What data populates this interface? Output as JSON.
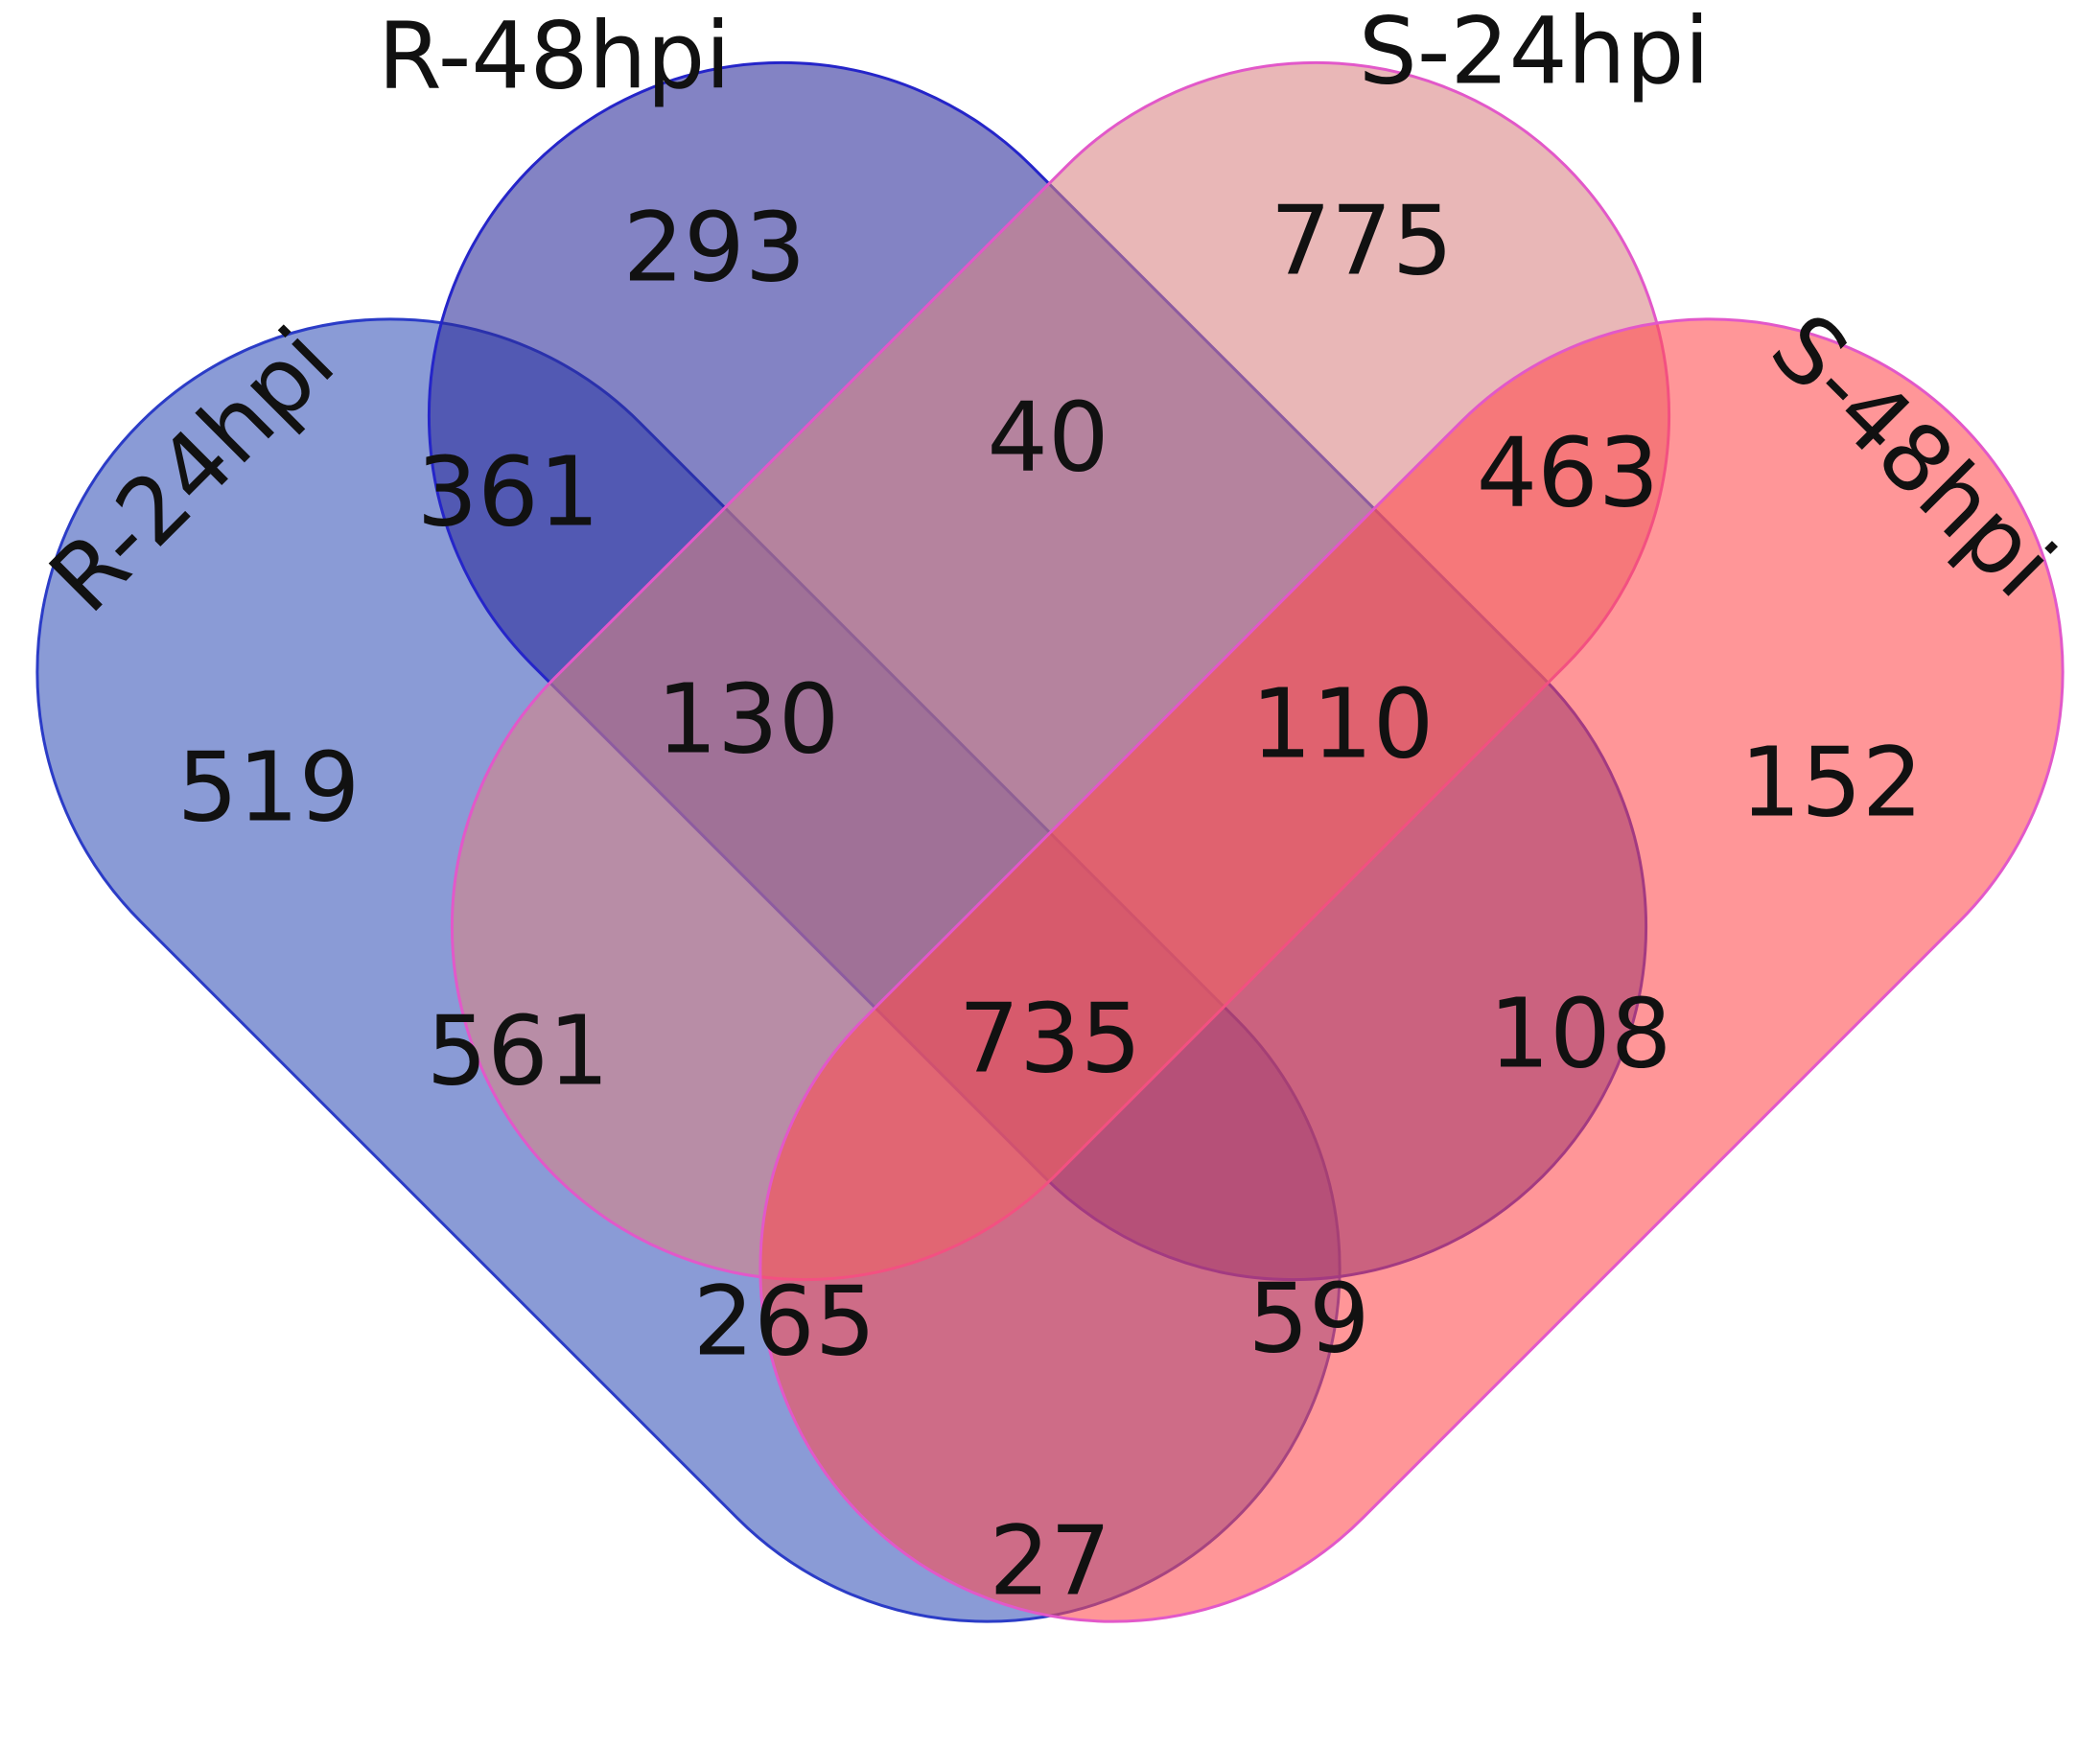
{
  "sets": [
    {
      "id": "r24",
      "label": "R-24hpi",
      "fill": "#3553b8",
      "stroke": "#2b3cc7",
      "opacity": 0.58
    },
    {
      "id": "r48",
      "label": "R-48hpi",
      "fill": "#2a2a9a",
      "stroke": "#2525c9",
      "opacity": 0.58
    },
    {
      "id": "s24",
      "label": "S-24hpi",
      "fill": "#d98383",
      "stroke": "#e258c9",
      "opacity": 0.58
    },
    {
      "id": "s48",
      "label": "S-48hpi",
      "fill": "#ff4a4e",
      "stroke": "#e258c9",
      "opacity": 0.58
    }
  ],
  "regions": [
    {
      "sets": [
        "R-24hpi"
      ],
      "count": "519"
    },
    {
      "sets": [
        "R-48hpi"
      ],
      "count": "293"
    },
    {
      "sets": [
        "S-24hpi"
      ],
      "count": "775"
    },
    {
      "sets": [
        "S-48hpi"
      ],
      "count": "152"
    },
    {
      "sets": [
        "R-24hpi",
        "R-48hpi"
      ],
      "count": "361"
    },
    {
      "sets": [
        "R-48hpi",
        "S-24hpi"
      ],
      "count": "40"
    },
    {
      "sets": [
        "S-24hpi",
        "S-48hpi"
      ],
      "count": "463"
    },
    {
      "sets": [
        "R-24hpi",
        "R-48hpi",
        "S-24hpi"
      ],
      "count": "130"
    },
    {
      "sets": [
        "R-48hpi",
        "S-24hpi",
        "S-48hpi"
      ],
      "count": "110"
    },
    {
      "sets": [
        "R-24hpi",
        "S-24hpi"
      ],
      "count": "561"
    },
    {
      "sets": [
        "R-24hpi",
        "R-48hpi",
        "S-24hpi",
        "S-48hpi"
      ],
      "count": "735"
    },
    {
      "sets": [
        "R-48hpi",
        "S-48hpi"
      ],
      "count": "108"
    },
    {
      "sets": [
        "R-24hpi",
        "S-24hpi",
        "S-48hpi"
      ],
      "count": "265"
    },
    {
      "sets": [
        "R-24hpi",
        "R-48hpi",
        "S-48hpi"
      ],
      "count": "59"
    },
    {
      "sets": [
        "R-24hpi",
        "S-48hpi"
      ],
      "count": "27"
    }
  ]
}
